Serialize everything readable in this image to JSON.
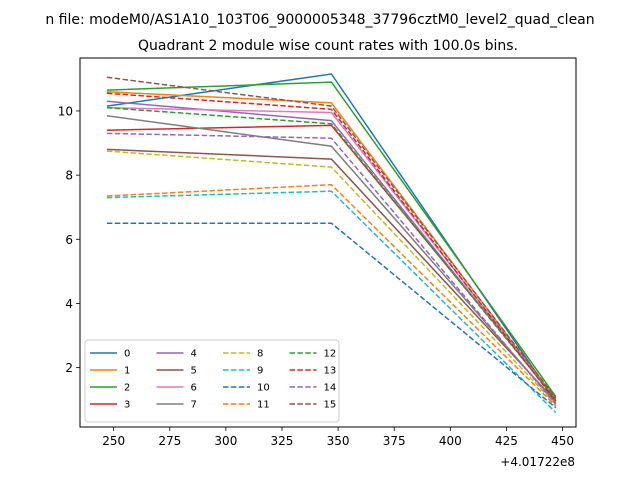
{
  "figure": {
    "suptitle": "n file: modeM0/AS1A10_103T06_9000005348_37796cztM0_level2_quad_clean",
    "title": "Quadrant 2 module wise count rates with 100.0s bins.",
    "offset_label": "+4.01722e8"
  },
  "chart_data": {
    "type": "line",
    "title": "Quadrant 2 module wise count rates with 100.0s bins.",
    "x": [
      247,
      347,
      447
    ],
    "xlim": [
      235,
      456
    ],
    "ylim": [
      0.15,
      11.65
    ],
    "x_ticks": [
      250,
      275,
      300,
      325,
      350,
      375,
      400,
      425,
      450
    ],
    "y_ticks": [
      2,
      4,
      6,
      8,
      10
    ],
    "grid": false,
    "legend": {
      "position": "lower-left",
      "columns": 4
    },
    "series": [
      {
        "name": "0",
        "color": "#1f77b4",
        "style": "solid",
        "values": [
          10.15,
          11.15,
          0.95
        ]
      },
      {
        "name": "1",
        "color": "#ff7f0e",
        "style": "solid",
        "values": [
          10.6,
          10.25,
          1.0
        ]
      },
      {
        "name": "2",
        "color": "#2ca02c",
        "style": "solid",
        "values": [
          10.65,
          10.9,
          1.1
        ]
      },
      {
        "name": "3",
        "color": "#d62728",
        "style": "solid",
        "values": [
          9.4,
          9.55,
          1.05
        ]
      },
      {
        "name": "4",
        "color": "#9467bd",
        "style": "solid",
        "values": [
          10.3,
          9.7,
          1.0
        ]
      },
      {
        "name": "5",
        "color": "#8c564b",
        "style": "solid",
        "values": [
          8.8,
          8.5,
          0.95
        ]
      },
      {
        "name": "6",
        "color": "#e377c2",
        "style": "solid",
        "values": [
          10.1,
          9.95,
          1.0
        ]
      },
      {
        "name": "7",
        "color": "#7f7f7f",
        "style": "solid",
        "values": [
          9.85,
          8.9,
          0.9
        ]
      },
      {
        "name": "8",
        "color": "#bcbd22",
        "style": "dashed",
        "values": [
          8.75,
          8.25,
          0.85
        ]
      },
      {
        "name": "9",
        "color": "#17becf",
        "style": "dashed",
        "values": [
          7.3,
          7.5,
          0.6
        ]
      },
      {
        "name": "10",
        "color": "#1f77b4",
        "style": "dashed",
        "values": [
          6.5,
          6.5,
          0.75
        ]
      },
      {
        "name": "11",
        "color": "#ff7f0e",
        "style": "dashed",
        "values": [
          7.35,
          7.7,
          0.8
        ]
      },
      {
        "name": "12",
        "color": "#2ca02c",
        "style": "dashed",
        "values": [
          10.1,
          9.6,
          1.0
        ]
      },
      {
        "name": "13",
        "color": "#d62728",
        "style": "dashed",
        "values": [
          10.55,
          10.05,
          0.95
        ]
      },
      {
        "name": "14",
        "color": "#9467bd",
        "style": "dashed",
        "values": [
          9.3,
          9.15,
          0.85
        ]
      },
      {
        "name": "15",
        "color": "#8c564b",
        "style": "dashed",
        "values": [
          11.05,
          10.15,
          1.05
        ]
      }
    ]
  }
}
